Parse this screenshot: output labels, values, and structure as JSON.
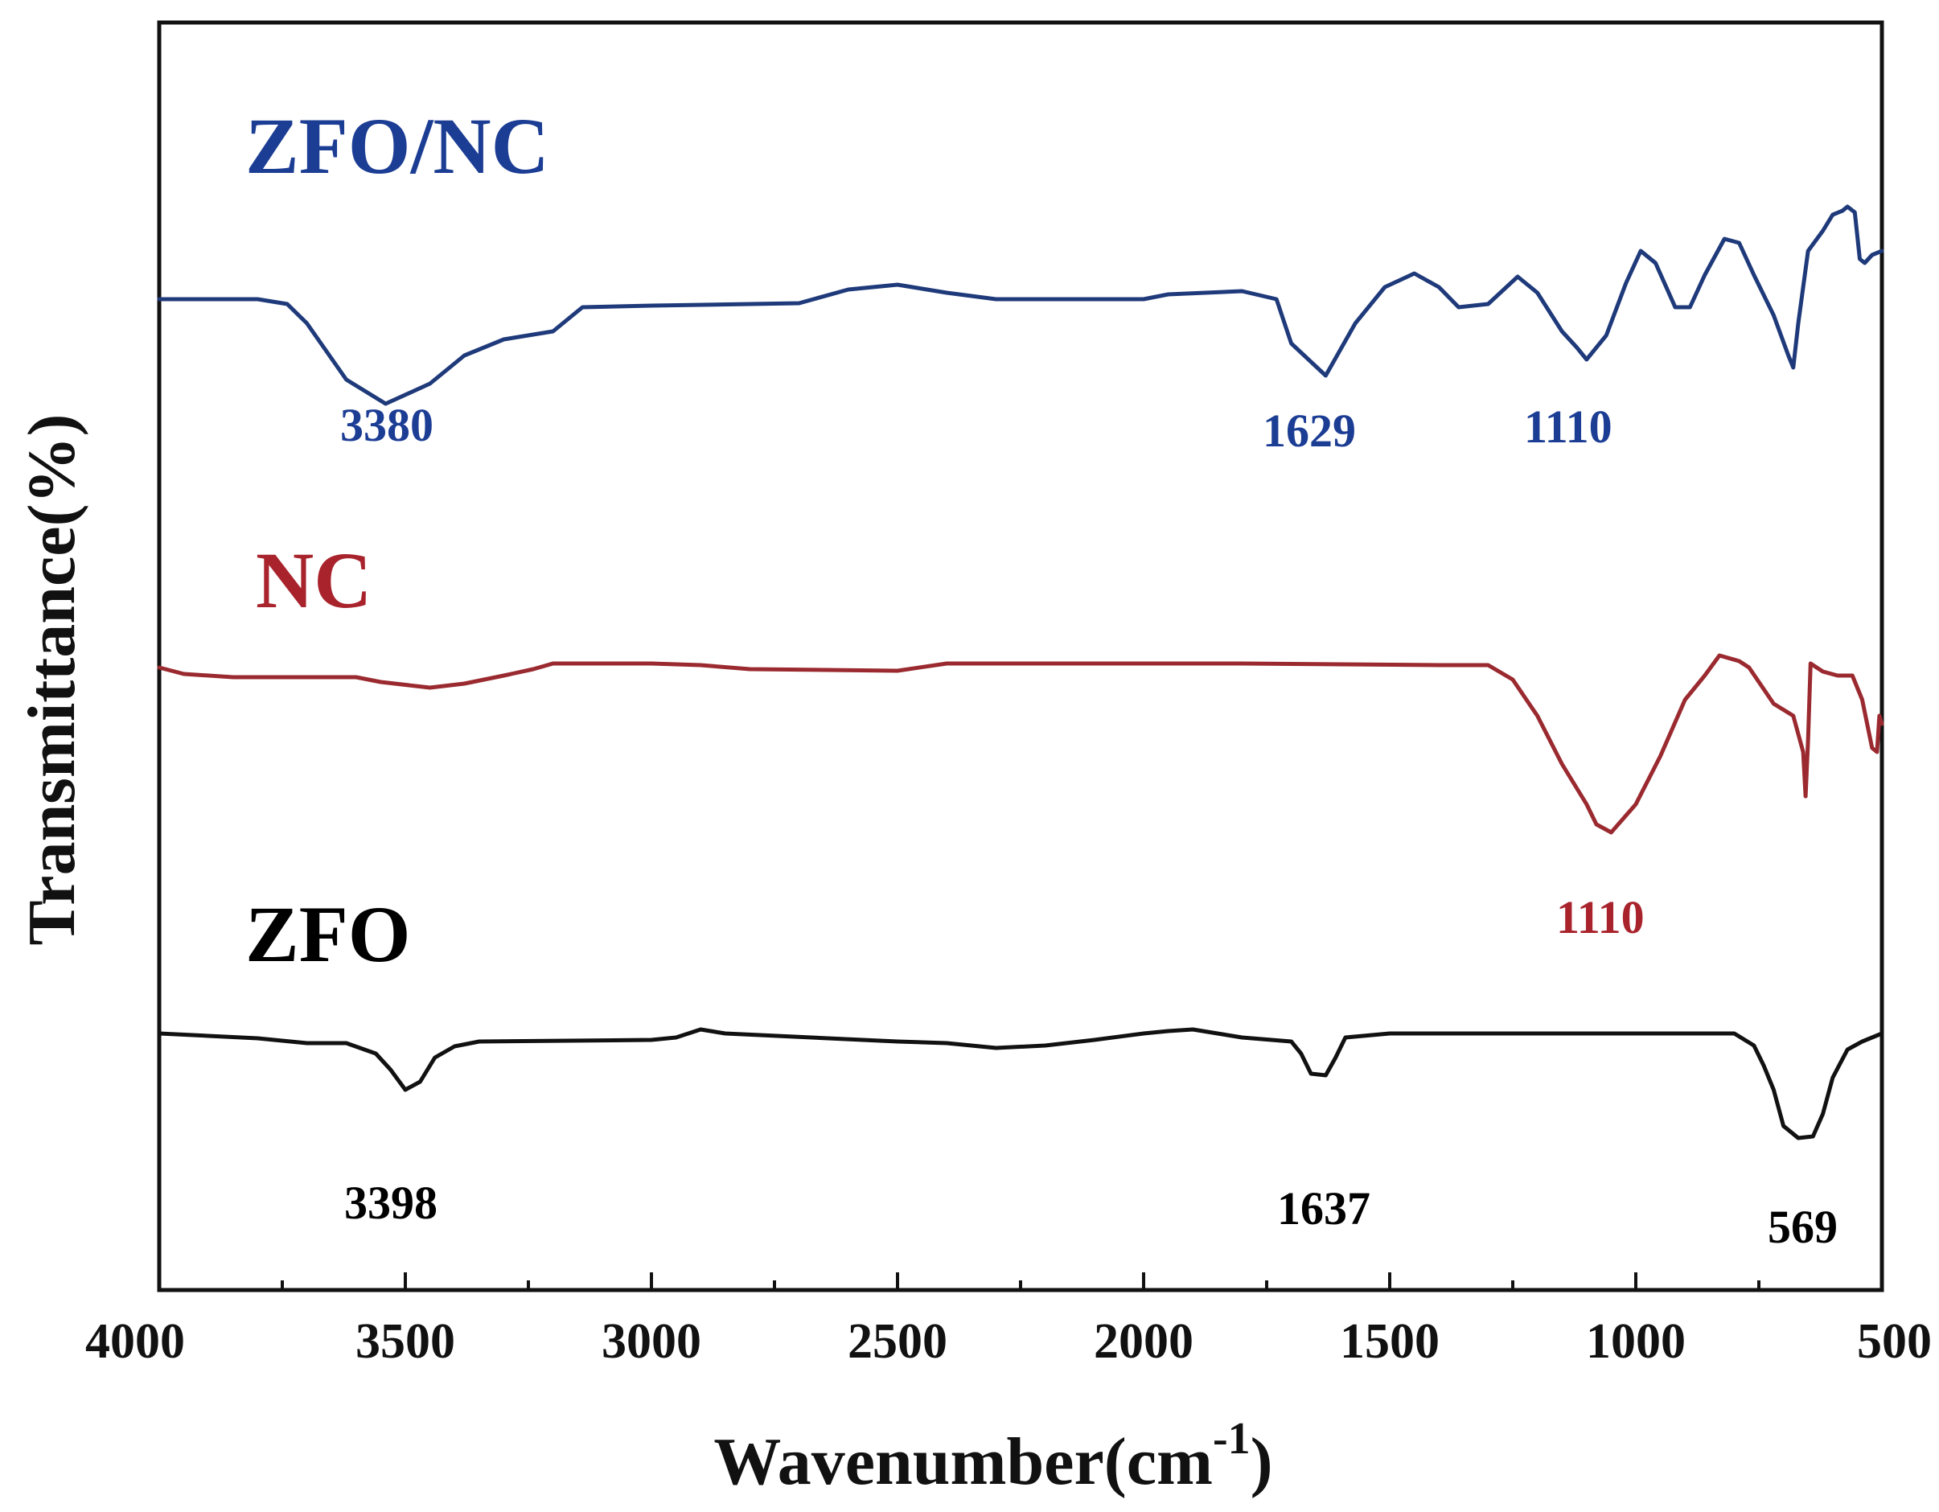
{
  "chart_data": {
    "type": "line",
    "title": "",
    "xlabel": "Wavenumber(cm",
    "xlabel_superscript": "-1",
    "xlabel_close": ")",
    "ylabel": "Transmittance(%)",
    "xlim": [
      4000,
      500
    ],
    "x_inverted": true,
    "y_ticks_shown": false,
    "grid": false,
    "x_ticks": [
      4000,
      3500,
      3000,
      2500,
      2000,
      1500,
      1000,
      500
    ],
    "x_tick_labels": [
      "4000",
      "3500",
      "3000",
      "2500",
      "2000",
      "1500",
      "1000",
      "500"
    ],
    "series": [
      {
        "name": "ZFO/NC",
        "color": "#1f3a7a",
        "label_color": "#1c3d94",
        "points": [
          [
            4000,
            0
          ],
          [
            3800,
            0
          ],
          [
            3740,
            -6
          ],
          [
            3700,
            -30
          ],
          [
            3620,
            -100
          ],
          [
            3540,
            -130
          ],
          [
            3450,
            -105
          ],
          [
            3380,
            -70
          ],
          [
            3300,
            -50
          ],
          [
            3200,
            -40
          ],
          [
            3140,
            -10
          ],
          [
            3000,
            -8
          ],
          [
            2700,
            -5
          ],
          [
            2600,
            12
          ],
          [
            2500,
            18
          ],
          [
            2400,
            8
          ],
          [
            2300,
            0
          ],
          [
            2000,
            0
          ],
          [
            1950,
            6
          ],
          [
            1800,
            10
          ],
          [
            1730,
            0
          ],
          [
            1700,
            -55
          ],
          [
            1630,
            -95
          ],
          [
            1570,
            -30
          ],
          [
            1510,
            15
          ],
          [
            1450,
            32
          ],
          [
            1400,
            15
          ],
          [
            1360,
            -10
          ],
          [
            1300,
            -6
          ],
          [
            1240,
            28
          ],
          [
            1200,
            8
          ],
          [
            1150,
            -40
          ],
          [
            1120,
            -60
          ],
          [
            1100,
            -75
          ],
          [
            1060,
            -45
          ],
          [
            1020,
            20
          ],
          [
            990,
            60
          ],
          [
            960,
            45
          ],
          [
            920,
            -10
          ],
          [
            890,
            -10
          ],
          [
            860,
            30
          ],
          [
            820,
            75
          ],
          [
            790,
            70
          ],
          [
            760,
            30
          ],
          [
            720,
            -20
          ],
          [
            690,
            -70
          ],
          [
            680,
            -85
          ],
          [
            670,
            -30
          ],
          [
            650,
            60
          ],
          [
            620,
            85
          ],
          [
            600,
            105
          ],
          [
            580,
            110
          ],
          [
            570,
            115
          ],
          [
            555,
            108
          ],
          [
            545,
            50
          ],
          [
            535,
            45
          ],
          [
            520,
            55
          ],
          [
            500,
            60
          ]
        ],
        "peak_labels": [
          {
            "text": "3380",
            "wavenumber": 3380
          },
          {
            "text": "1629",
            "wavenumber": 1629
          },
          {
            "text": "1110",
            "wavenumber": 1110
          }
        ]
      },
      {
        "name": "NC",
        "color": "#9a2a2f",
        "label_color": "#a8232c",
        "points": [
          [
            4000,
            0
          ],
          [
            3950,
            -8
          ],
          [
            3850,
            -12
          ],
          [
            3600,
            -12
          ],
          [
            3550,
            -18
          ],
          [
            3450,
            -25
          ],
          [
            3380,
            -20
          ],
          [
            3300,
            -10
          ],
          [
            3240,
            -2
          ],
          [
            3200,
            5
          ],
          [
            3000,
            5
          ],
          [
            2900,
            3
          ],
          [
            2800,
            -2
          ],
          [
            2500,
            -4
          ],
          [
            2400,
            5
          ],
          [
            2000,
            5
          ],
          [
            1800,
            5
          ],
          [
            1400,
            3
          ],
          [
            1300,
            3
          ],
          [
            1250,
            -15
          ],
          [
            1200,
            -60
          ],
          [
            1150,
            -120
          ],
          [
            1100,
            -170
          ],
          [
            1080,
            -195
          ],
          [
            1050,
            -205
          ],
          [
            1000,
            -170
          ],
          [
            950,
            -110
          ],
          [
            900,
            -40
          ],
          [
            860,
            -10
          ],
          [
            830,
            15
          ],
          [
            790,
            8
          ],
          [
            770,
            0
          ],
          [
            720,
            -45
          ],
          [
            680,
            -60
          ],
          [
            660,
            -105
          ],
          [
            655,
            -160
          ],
          [
            650,
            -90
          ],
          [
            645,
            5
          ],
          [
            620,
            -5
          ],
          [
            590,
            -10
          ],
          [
            560,
            -10
          ],
          [
            540,
            -40
          ],
          [
            520,
            -100
          ],
          [
            510,
            -105
          ],
          [
            505,
            -60
          ],
          [
            500,
            -70
          ]
        ],
        "peak_labels": [
          {
            "text": "1110",
            "wavenumber": 1110
          }
        ]
      },
      {
        "name": "ZFO",
        "color": "#111111",
        "label_color": "#000000",
        "points": [
          [
            4000,
            0
          ],
          [
            3800,
            -6
          ],
          [
            3700,
            -12
          ],
          [
            3620,
            -12
          ],
          [
            3560,
            -25
          ],
          [
            3530,
            -45
          ],
          [
            3500,
            -70
          ],
          [
            3470,
            -60
          ],
          [
            3440,
            -30
          ],
          [
            3400,
            -16
          ],
          [
            3350,
            -10
          ],
          [
            3000,
            -8
          ],
          [
            2950,
            -5
          ],
          [
            2900,
            5
          ],
          [
            2850,
            0
          ],
          [
            2500,
            -10
          ],
          [
            2400,
            -12
          ],
          [
            2300,
            -18
          ],
          [
            2200,
            -15
          ],
          [
            2100,
            -8
          ],
          [
            2000,
            0
          ],
          [
            1950,
            3
          ],
          [
            1900,
            5
          ],
          [
            1800,
            -5
          ],
          [
            1700,
            -10
          ],
          [
            1680,
            -25
          ],
          [
            1660,
            -50
          ],
          [
            1630,
            -52
          ],
          [
            1610,
            -30
          ],
          [
            1590,
            -5
          ],
          [
            1500,
            0
          ],
          [
            1000,
            0
          ],
          [
            800,
            0
          ],
          [
            760,
            -15
          ],
          [
            740,
            -40
          ],
          [
            720,
            -70
          ],
          [
            700,
            -115
          ],
          [
            670,
            -130
          ],
          [
            640,
            -128
          ],
          [
            620,
            -100
          ],
          [
            600,
            -55
          ],
          [
            570,
            -20
          ],
          [
            540,
            -10
          ],
          [
            500,
            0
          ]
        ],
        "peak_labels": [
          {
            "text": "3398",
            "wavenumber": 3398
          },
          {
            "text": "1637",
            "wavenumber": 1637
          },
          {
            "text": "569",
            "wavenumber": 569
          }
        ]
      }
    ]
  }
}
